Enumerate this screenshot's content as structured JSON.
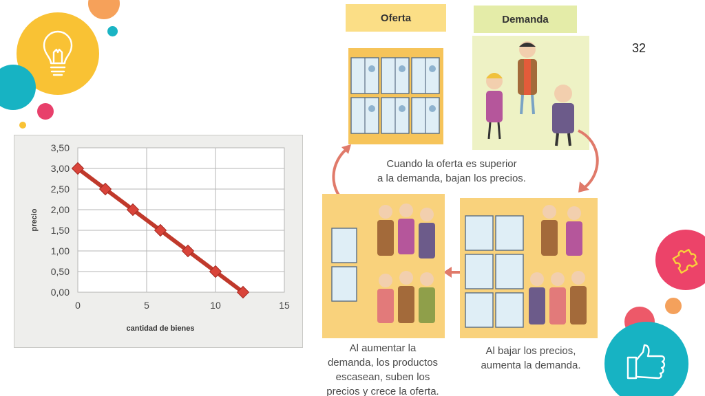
{
  "slide": {
    "page_number": "32"
  },
  "chart_data": {
    "type": "line",
    "xlabel": "cantidad de bienes",
    "ylabel": "precio",
    "xlim": [
      0,
      15
    ],
    "ylim": [
      0,
      3.5
    ],
    "x_ticks": [
      "0",
      "5",
      "10",
      "15"
    ],
    "y_ticks": [
      "0,00",
      "0,50",
      "1,00",
      "1,50",
      "2,00",
      "2,50",
      "3,00",
      "3,50"
    ],
    "grid": true,
    "series": [
      {
        "x": [
          0,
          2,
          4,
          6,
          8,
          10,
          12
        ],
        "y": [
          3.0,
          2.5,
          2.0,
          1.5,
          1.0,
          0.5,
          0.0
        ]
      }
    ],
    "line_color": "#c0392b"
  },
  "infographic": {
    "label_oferta": "Oferta",
    "label_demanda": "Demanda",
    "text_middle": [
      "Cuando la oferta es superior",
      "a la demanda, bajan los precios."
    ],
    "text_bottom_left": [
      "Al aumentar la",
      "demanda, los productos",
      "escasean, suben los",
      "precios y crece la oferta."
    ],
    "text_bottom_right": [
      "Al bajar los precios,",
      "aumenta la demanda."
    ]
  },
  "icons": [
    "lightbulb-icon",
    "puzzle-icon",
    "thumbs-up-icon"
  ],
  "colors": {
    "yellow": "#f9c234",
    "teal": "#17b3c3",
    "pink": "#ec4369",
    "orange": "#f6a15a",
    "arrow": "#e07a6a"
  }
}
